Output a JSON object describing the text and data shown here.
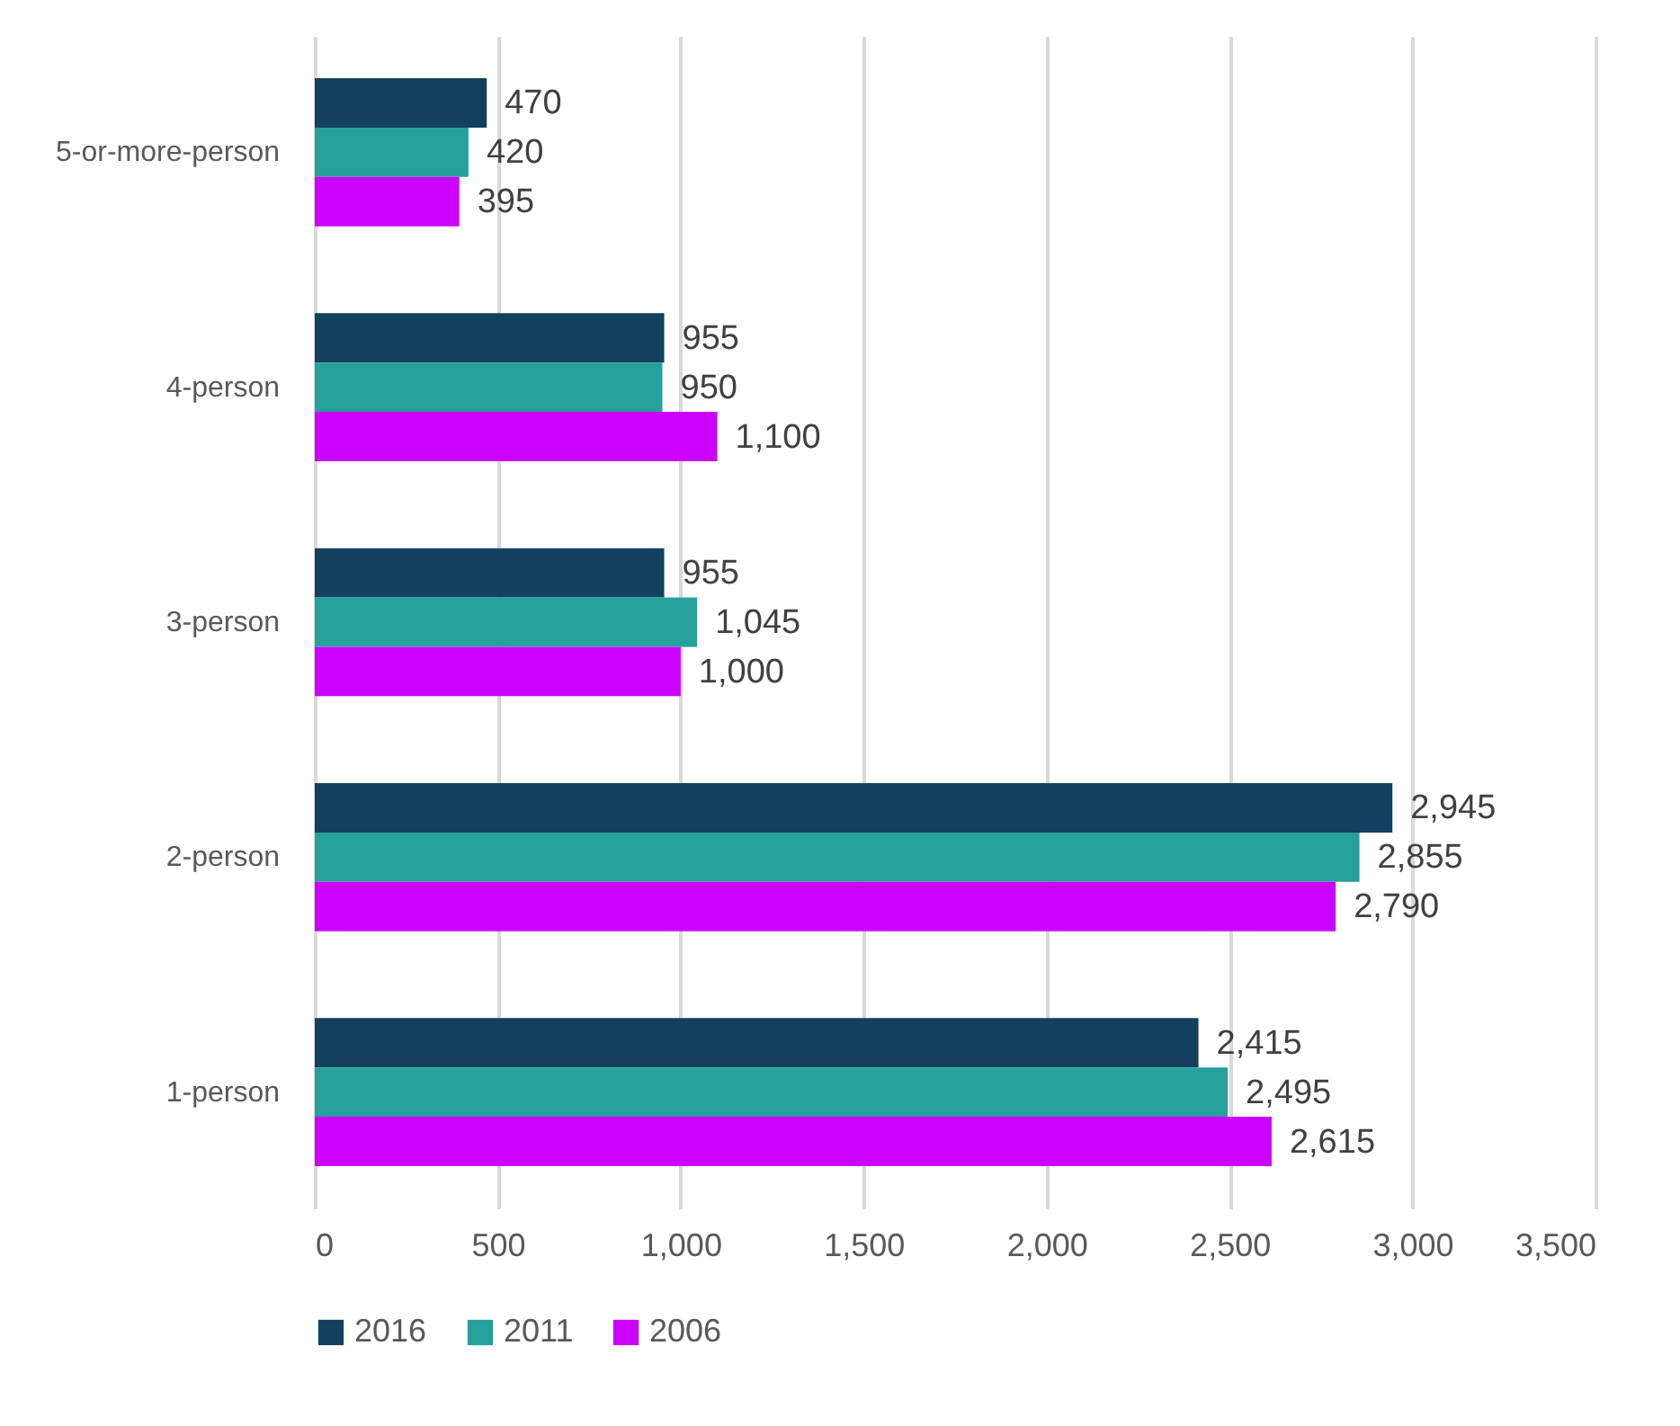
{
  "chart_data": {
    "type": "bar",
    "orientation": "horizontal",
    "categories": [
      "5-or-more-person",
      "4-person",
      "3-person",
      "2-person",
      "1-person"
    ],
    "series": [
      {
        "name": "2016",
        "color": "#14405f",
        "values": [
          470,
          955,
          955,
          2945,
          2415
        ],
        "value_labels": [
          "470",
          "955",
          "955",
          "2,945",
          "2,415"
        ]
      },
      {
        "name": "2011",
        "color": "#26a09c",
        "values": [
          420,
          950,
          1045,
          2855,
          2495
        ],
        "value_labels": [
          "420",
          "950",
          "1,045",
          "2,855",
          "2,495"
        ]
      },
      {
        "name": "2006",
        "color": "#cc00ff",
        "values": [
          395,
          1100,
          1000,
          2790,
          2615
        ],
        "value_labels": [
          "395",
          "1,100",
          "1,000",
          "2,790",
          "2,615"
        ]
      }
    ],
    "xlim": [
      0,
      3500
    ],
    "xticks": [
      0,
      500,
      {
        "value": 1000,
        "label": "1,000"
      },
      {
        "value": 1500,
        "label": "1,500"
      },
      {
        "value": 2000,
        "label": "2,000"
      },
      {
        "value": 2500,
        "label": "2,500"
      },
      {
        "value": 3000,
        "label": "3,000"
      },
      {
        "value": 3500,
        "label": "3,500"
      }
    ],
    "grid": "x",
    "legend": "bottom"
  }
}
